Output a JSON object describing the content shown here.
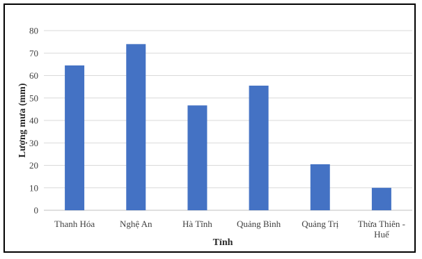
{
  "chart_data": {
    "type": "bar",
    "categories": [
      [
        "Thanh Hóa"
      ],
      [
        "Nghệ An"
      ],
      [
        "Hà Tĩnh"
      ],
      [
        "Quảng Bình"
      ],
      [
        "Quảng Trị"
      ],
      [
        "Thừa Thiên -",
        "Huế"
      ]
    ],
    "values": [
      64.5,
      74,
      46.7,
      55.5,
      20.5,
      10
    ],
    "xlabel": "Tỉnh",
    "ylabel": "Lượng mưa (mm)",
    "ylim": [
      0,
      80
    ],
    "yticks": [
      0,
      10,
      20,
      30,
      40,
      50,
      60,
      70,
      80
    ],
    "grid": true,
    "colors": {
      "bar": "#4472C4",
      "grid": "#D9D9D9",
      "axis": "#BFBFBF"
    }
  }
}
